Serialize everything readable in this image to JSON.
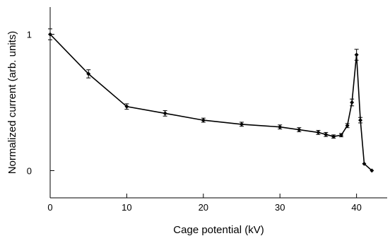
{
  "chart_data": {
    "type": "line",
    "xlabel": "Cage potential (kV)",
    "ylabel": "Normalized current (arb. units)",
    "xlim": [
      0,
      44
    ],
    "ylim": [
      -0.2,
      1.2
    ],
    "x_ticks": [
      0,
      10,
      20,
      30,
      40
    ],
    "x_tick_labels": [
      "0",
      "10",
      "20",
      "30",
      "40"
    ],
    "y_ticks": [
      0,
      1
    ],
    "y_tick_labels": [
      "0",
      "1"
    ],
    "grid": false,
    "series": [
      {
        "color": "#000000",
        "points": [
          {
            "x": 0,
            "y": 1.0,
            "err": 0.04
          },
          {
            "x": 5,
            "y": 0.71,
            "err": 0.03
          },
          {
            "x": 10,
            "y": 0.47,
            "err": 0.02
          },
          {
            "x": 15,
            "y": 0.42,
            "err": 0.02
          },
          {
            "x": 20,
            "y": 0.37,
            "err": 0.015
          },
          {
            "x": 25,
            "y": 0.34,
            "err": 0.015
          },
          {
            "x": 30,
            "y": 0.32,
            "err": 0.015
          },
          {
            "x": 32.5,
            "y": 0.3,
            "err": 0.015
          },
          {
            "x": 35,
            "y": 0.28,
            "err": 0.015
          },
          {
            "x": 36,
            "y": 0.265,
            "err": 0.015
          },
          {
            "x": 37,
            "y": 0.25,
            "err": 0.012
          },
          {
            "x": 38,
            "y": 0.26,
            "err": 0.012
          },
          {
            "x": 38.8,
            "y": 0.33,
            "err": 0.015
          },
          {
            "x": 39.4,
            "y": 0.5,
            "err": 0.025
          },
          {
            "x": 40,
            "y": 0.85,
            "err": 0.04
          },
          {
            "x": 40.5,
            "y": 0.37,
            "err": 0.02
          },
          {
            "x": 41,
            "y": 0.05,
            "err": 0
          },
          {
            "x": 42,
            "y": 0.0,
            "err": 0
          }
        ]
      }
    ]
  }
}
